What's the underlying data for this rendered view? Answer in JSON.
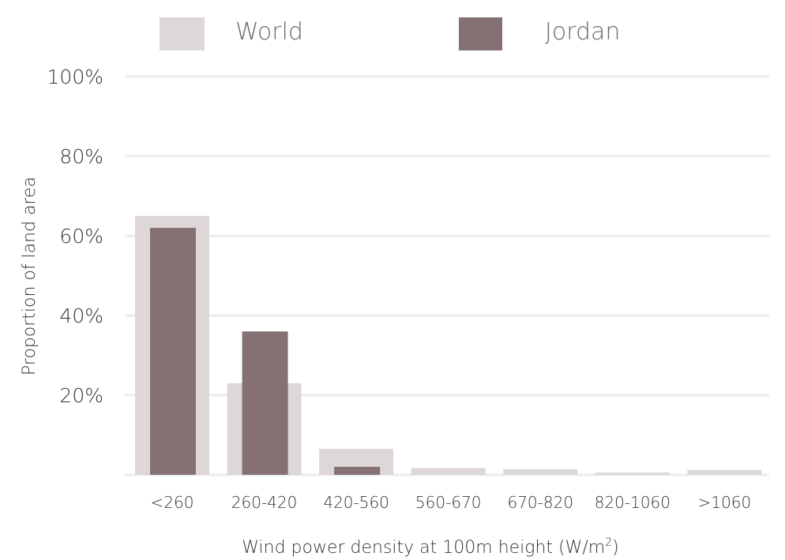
{
  "chart_data": {
    "type": "bar",
    "categories": [
      "<260",
      "260-420",
      "420-560",
      "560-670",
      "670-820",
      "820-1060",
      ">1060"
    ],
    "series": [
      {
        "name": "World",
        "values": [
          65,
          23,
          6.5,
          1.7,
          1.4,
          0.6,
          1.2
        ],
        "color": "#ddd7d7"
      },
      {
        "name": "Jordan",
        "values": [
          62,
          36,
          2,
          0,
          0,
          0,
          0
        ],
        "color": "#857073"
      }
    ],
    "xlabel_main": "Wind power density at 100m height (W/m",
    "xlabel_sup": "2",
    "xlabel_end": ")",
    "ylabel": "Proportion of land area",
    "ylim": [
      0,
      100
    ],
    "yticks": [
      20,
      40,
      60,
      80,
      100
    ],
    "ytick_labels": [
      "20%",
      "40%",
      "60%",
      "80%",
      "100%"
    ],
    "grid": true,
    "legend_position": "top"
  }
}
